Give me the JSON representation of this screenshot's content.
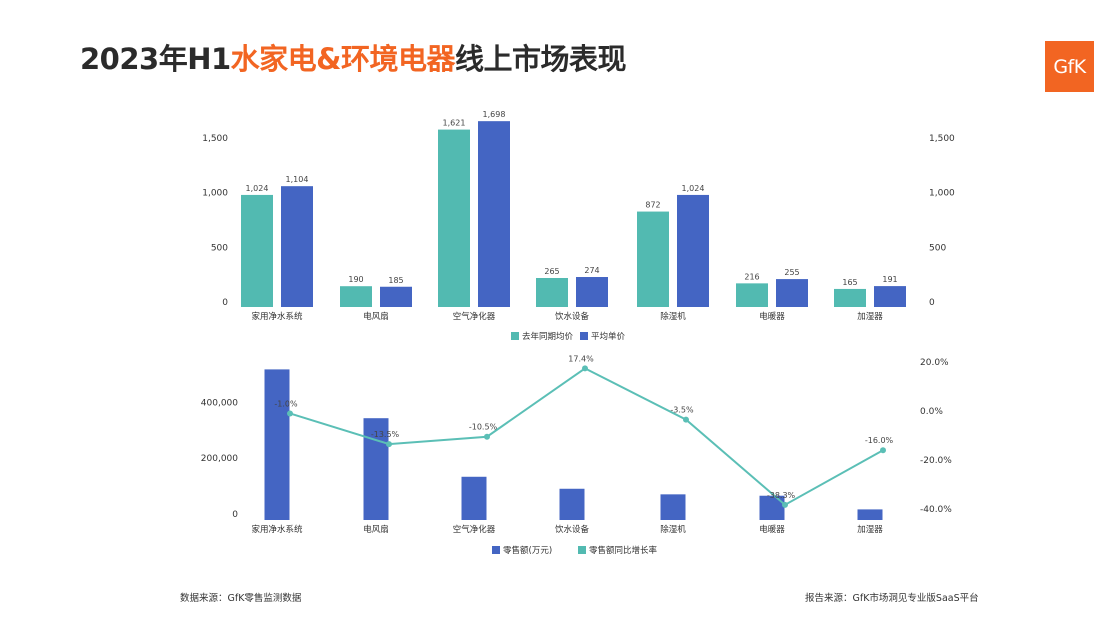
{
  "title": {
    "part1": "2023年H1",
    "part2": "水家电&环境电器",
    "part3": "线上市场表现"
  },
  "logo_text": "GfK",
  "footer": {
    "source_left": "数据来源：GfK零售监测数据",
    "source_right": "报告来源：GfK市场洞见专业版SaaS平台"
  },
  "colors": {
    "title_accent": "#f26522",
    "teal": "#52bab1",
    "blue": "#4465c3",
    "line": "#5bbfb6"
  },
  "chart_data": [
    {
      "type": "bar",
      "categories": [
        "家用净水系统",
        "电风扇",
        "空气净化器",
        "饮水设备",
        "除湿机",
        "电暖器",
        "加湿器"
      ],
      "series": [
        {
          "name": "去年同期均价",
          "values": [
            1024,
            190,
            1621,
            265,
            872,
            216,
            165
          ],
          "labels": [
            "1,024",
            "190",
            "1,621",
            "265",
            "872",
            "216",
            "165"
          ]
        },
        {
          "name": "平均单价",
          "values": [
            1104,
            185,
            1698,
            274,
            1024,
            255,
            191
          ],
          "labels": [
            "1,104",
            "185",
            "1,698",
            "274",
            "1,024",
            "255",
            "191"
          ]
        }
      ],
      "left_ticks": [
        {
          "v": 0,
          "label": "0"
        },
        {
          "v": 500,
          "label": "500"
        },
        {
          "v": 1000,
          "label": "1,000"
        },
        {
          "v": 1500,
          "label": "1,500"
        }
      ],
      "right_ticks": [
        {
          "v": 0,
          "label": "0"
        },
        {
          "v": 500,
          "label": "500"
        },
        {
          "v": 1000,
          "label": "1,000"
        },
        {
          "v": 1500,
          "label": "1,500"
        }
      ],
      "ylim": [
        0,
        1800
      ],
      "legend_position": "bottom",
      "grid": false
    },
    {
      "type": "bar+line",
      "categories": [
        "家用净水系统",
        "电风扇",
        "空气净化器",
        "饮水设备",
        "除湿机",
        "电暖器",
        "加湿器"
      ],
      "bar_series": {
        "name": "零售额(万元)",
        "values": [
          540000,
          365000,
          155000,
          112000,
          92000,
          87000,
          38000
        ]
      },
      "line_series": {
        "name": "零售额同比增长率",
        "values": [
          -1.0,
          -13.5,
          -10.5,
          17.4,
          -3.5,
          -38.3,
          -16.0
        ],
        "labels": [
          "-1.0%",
          "-13.5%",
          "-10.5%",
          "17.4%",
          "-3.5%",
          "-38.3%",
          "-16.0%"
        ]
      },
      "left_ticks": [
        {
          "v": 0,
          "label": "0"
        },
        {
          "v": 200000,
          "label": "200,000"
        },
        {
          "v": 400000,
          "label": "400,000"
        }
      ],
      "right_ticks": [
        {
          "v": 20,
          "label": "20.0%"
        },
        {
          "v": 0,
          "label": "0.0%"
        },
        {
          "v": -20,
          "label": "-20.0%"
        },
        {
          "v": -40,
          "label": "-40.0%"
        }
      ],
      "ylim_left": [
        0,
        545000
      ],
      "ylim_right": [
        -40,
        20
      ],
      "legend_position": "bottom",
      "grid": false
    }
  ]
}
